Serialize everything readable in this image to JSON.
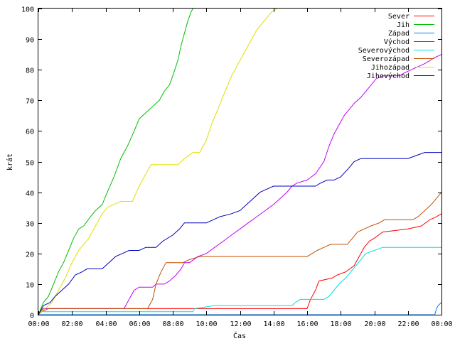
{
  "chart_data": {
    "type": "line",
    "title": "",
    "xlabel": "Čas",
    "ylabel": "krát",
    "xlim": [
      0,
      24
    ],
    "ylim": [
      0,
      100
    ],
    "x_ticks": [
      0,
      2,
      4,
      6,
      8,
      10,
      12,
      14,
      16,
      18,
      20,
      22,
      24
    ],
    "x_tick_labels": [
      "00:00",
      "02:00",
      "04:00",
      "06:00",
      "08:00",
      "10:00",
      "12:00",
      "14:00",
      "16:00",
      "18:00",
      "20:00",
      "22:00",
      "00:00"
    ],
    "y_ticks": [
      0,
      10,
      20,
      30,
      40,
      50,
      60,
      70,
      80,
      90,
      100
    ],
    "grid": false,
    "legend_position": "top-right",
    "series": [
      {
        "name": "Sever",
        "color": "#ff0000",
        "points": [
          [
            0,
            0
          ],
          [
            0.1,
            1
          ],
          [
            0.3,
            2
          ],
          [
            16,
            2
          ],
          [
            16.2,
            5
          ],
          [
            16.5,
            8
          ],
          [
            16.7,
            11
          ],
          [
            17.5,
            12
          ],
          [
            17.8,
            13
          ],
          [
            18.3,
            14
          ],
          [
            18.8,
            16
          ],
          [
            19.1,
            19
          ],
          [
            19.4,
            22
          ],
          [
            19.7,
            24
          ],
          [
            20.0,
            25
          ],
          [
            20.5,
            27
          ],
          [
            22.0,
            28
          ],
          [
            22.8,
            29
          ],
          [
            23.3,
            31
          ],
          [
            23.7,
            32
          ],
          [
            24,
            33
          ]
        ]
      },
      {
        "name": "Jih",
        "color": "#00c000",
        "points": [
          [
            0,
            0
          ],
          [
            0.3,
            4
          ],
          [
            0.6,
            6
          ],
          [
            0.9,
            10
          ],
          [
            1.2,
            14
          ],
          [
            1.5,
            17
          ],
          [
            1.8,
            21
          ],
          [
            2.1,
            25
          ],
          [
            2.4,
            28
          ],
          [
            2.7,
            29
          ],
          [
            3.1,
            32
          ],
          [
            3.4,
            34
          ],
          [
            3.8,
            36
          ],
          [
            4.1,
            40
          ],
          [
            4.5,
            45
          ],
          [
            4.9,
            51
          ],
          [
            5.3,
            55
          ],
          [
            5.7,
            60
          ],
          [
            6.0,
            64
          ],
          [
            6.4,
            66
          ],
          [
            6.8,
            68
          ],
          [
            7.2,
            70
          ],
          [
            7.5,
            73
          ],
          [
            7.8,
            75
          ],
          [
            8.0,
            78
          ],
          [
            8.3,
            83
          ],
          [
            8.5,
            88
          ],
          [
            8.7,
            92
          ],
          [
            8.9,
            96
          ],
          [
            9.1,
            99
          ],
          [
            9.2,
            100
          ]
        ]
      },
      {
        "name": "Západ",
        "color": "#0080ff",
        "points": [
          [
            0,
            0
          ],
          [
            23.6,
            0
          ],
          [
            23.7,
            2
          ],
          [
            23.8,
            3
          ],
          [
            24,
            4
          ]
        ]
      },
      {
        "name": "Východ",
        "color": "#c000ff",
        "points": [
          [
            0,
            0
          ],
          [
            0.2,
            1
          ],
          [
            0.4,
            2
          ],
          [
            5.1,
            2
          ],
          [
            5.3,
            4
          ],
          [
            5.5,
            6
          ],
          [
            5.7,
            8
          ],
          [
            6.0,
            9
          ],
          [
            6.8,
            9
          ],
          [
            7.0,
            10
          ],
          [
            7.5,
            10
          ],
          [
            7.8,
            11
          ],
          [
            8.2,
            13
          ],
          [
            8.5,
            15
          ],
          [
            8.7,
            17
          ],
          [
            9.0,
            17
          ],
          [
            9.5,
            19
          ],
          [
            10.0,
            20
          ],
          [
            10.5,
            22
          ],
          [
            11.0,
            24
          ],
          [
            11.5,
            26
          ],
          [
            12.0,
            28
          ],
          [
            12.5,
            30
          ],
          [
            13.0,
            32
          ],
          [
            13.5,
            34
          ],
          [
            14.0,
            36
          ],
          [
            14.4,
            38
          ],
          [
            14.8,
            40
          ],
          [
            15.1,
            42
          ],
          [
            15.4,
            43
          ],
          [
            16.0,
            44
          ],
          [
            16.5,
            46
          ],
          [
            17.0,
            50
          ],
          [
            17.3,
            55
          ],
          [
            17.6,
            59
          ],
          [
            17.9,
            62
          ],
          [
            18.2,
            65
          ],
          [
            18.5,
            67
          ],
          [
            18.8,
            69
          ],
          [
            19.2,
            71
          ],
          [
            19.5,
            73
          ],
          [
            19.8,
            75
          ],
          [
            20.1,
            77
          ],
          [
            20.5,
            78
          ],
          [
            21.5,
            78
          ],
          [
            21.8,
            79
          ],
          [
            22.2,
            80
          ],
          [
            22.6,
            81
          ],
          [
            23.0,
            82
          ],
          [
            23.3,
            83
          ],
          [
            23.6,
            84
          ],
          [
            24,
            85
          ]
        ]
      },
      {
        "name": "Severovýchod",
        "color": "#00e0e0",
        "points": [
          [
            0,
            0
          ],
          [
            0.1,
            1
          ],
          [
            9.2,
            1
          ],
          [
            9.3,
            2
          ],
          [
            10.5,
            3
          ],
          [
            15.1,
            3
          ],
          [
            15.3,
            4
          ],
          [
            15.6,
            5
          ],
          [
            17.0,
            5
          ],
          [
            17.3,
            6
          ],
          [
            17.6,
            8
          ],
          [
            17.9,
            10
          ],
          [
            18.3,
            12
          ],
          [
            18.6,
            14
          ],
          [
            18.9,
            16
          ],
          [
            19.2,
            18
          ],
          [
            19.5,
            20
          ],
          [
            20.0,
            21
          ],
          [
            20.5,
            22
          ],
          [
            24,
            22
          ]
        ]
      },
      {
        "name": "Severozápad",
        "color": "#c05000",
        "points": [
          [
            0,
            0
          ],
          [
            0.2,
            1
          ],
          [
            0.6,
            2
          ],
          [
            6.5,
            2
          ],
          [
            6.8,
            5
          ],
          [
            7.0,
            10
          ],
          [
            7.3,
            14
          ],
          [
            7.6,
            17
          ],
          [
            8.6,
            17
          ],
          [
            9.0,
            18
          ],
          [
            9.6,
            19
          ],
          [
            10.6,
            19
          ],
          [
            16.0,
            19
          ],
          [
            16.6,
            21
          ],
          [
            17.0,
            22
          ],
          [
            17.4,
            23
          ],
          [
            18.4,
            23
          ],
          [
            18.7,
            25
          ],
          [
            19.0,
            27
          ],
          [
            19.4,
            28
          ],
          [
            19.8,
            29
          ],
          [
            20.3,
            30
          ],
          [
            20.6,
            31
          ],
          [
            22.3,
            31
          ],
          [
            22.6,
            32
          ],
          [
            23.0,
            34
          ],
          [
            23.4,
            36
          ],
          [
            23.7,
            38
          ],
          [
            24,
            40
          ]
        ]
      },
      {
        "name": "Jihozápad",
        "color": "#e0e000",
        "points": [
          [
            0,
            0
          ],
          [
            0.8,
            4
          ],
          [
            1.2,
            8
          ],
          [
            1.6,
            12
          ],
          [
            2.0,
            17
          ],
          [
            2.4,
            21
          ],
          [
            2.7,
            23
          ],
          [
            3.0,
            25
          ],
          [
            3.4,
            29
          ],
          [
            3.8,
            33
          ],
          [
            4.1,
            35
          ],
          [
            4.5,
            36
          ],
          [
            4.9,
            37
          ],
          [
            5.6,
            37
          ],
          [
            6.0,
            42
          ],
          [
            6.3,
            45
          ],
          [
            6.7,
            49
          ],
          [
            7.4,
            49
          ],
          [
            8.3,
            49
          ],
          [
            8.7,
            51
          ],
          [
            9.2,
            53
          ],
          [
            9.6,
            53
          ],
          [
            10.0,
            57
          ],
          [
            10.3,
            62
          ],
          [
            10.6,
            66
          ],
          [
            10.9,
            70
          ],
          [
            11.2,
            74
          ],
          [
            11.5,
            78
          ],
          [
            11.8,
            81
          ],
          [
            12.1,
            84
          ],
          [
            12.4,
            87
          ],
          [
            12.7,
            90
          ],
          [
            13.0,
            93
          ],
          [
            13.3,
            95
          ],
          [
            13.6,
            97
          ],
          [
            13.9,
            99
          ],
          [
            14.2,
            100
          ]
        ]
      },
      {
        "name": "Jihovýchod",
        "color": "#0000c0",
        "points": [
          [
            0,
            0
          ],
          [
            0.3,
            3
          ],
          [
            0.7,
            4
          ],
          [
            1.0,
            6
          ],
          [
            1.4,
            8
          ],
          [
            1.8,
            10
          ],
          [
            2.2,
            13
          ],
          [
            2.6,
            14
          ],
          [
            2.9,
            15
          ],
          [
            3.8,
            15
          ],
          [
            4.2,
            17
          ],
          [
            4.6,
            19
          ],
          [
            5.0,
            20
          ],
          [
            5.4,
            21
          ],
          [
            6.0,
            21
          ],
          [
            6.4,
            22
          ],
          [
            7.0,
            22
          ],
          [
            7.4,
            24
          ],
          [
            8.0,
            26
          ],
          [
            8.4,
            28
          ],
          [
            8.7,
            30
          ],
          [
            10.0,
            30
          ],
          [
            10.4,
            31
          ],
          [
            10.8,
            32
          ],
          [
            11.5,
            33
          ],
          [
            12.0,
            34
          ],
          [
            12.4,
            36
          ],
          [
            12.8,
            38
          ],
          [
            13.2,
            40
          ],
          [
            13.6,
            41
          ],
          [
            14.0,
            42
          ],
          [
            16.5,
            42
          ],
          [
            16.8,
            43
          ],
          [
            17.2,
            44
          ],
          [
            17.6,
            44
          ],
          [
            18.0,
            45
          ],
          [
            18.5,
            48
          ],
          [
            18.8,
            50
          ],
          [
            19.2,
            51
          ],
          [
            22.0,
            51
          ],
          [
            22.5,
            52
          ],
          [
            23.0,
            53
          ],
          [
            24,
            53
          ]
        ]
      }
    ]
  }
}
